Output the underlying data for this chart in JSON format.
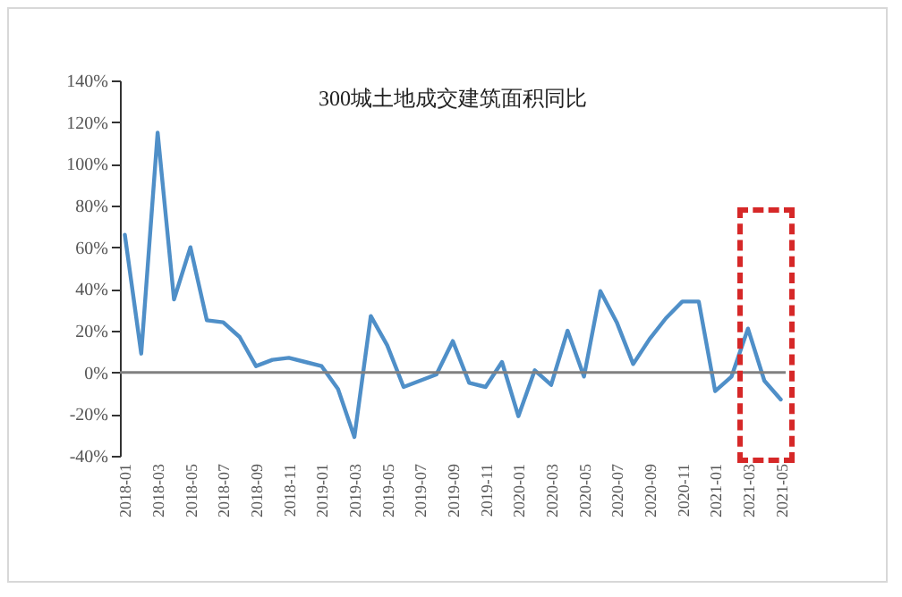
{
  "chart_data": {
    "type": "line",
    "title": "300城土地成交建筑面积同比",
    "categories": [
      "2018-01",
      null,
      "2018-03",
      null,
      "2018-05",
      null,
      "2018-07",
      null,
      "2018-09",
      null,
      "2018-11",
      null,
      "2019-01",
      null,
      "2019-03",
      null,
      "2019-05",
      null,
      "2019-07",
      null,
      "2019-09",
      null,
      "2019-11",
      null,
      "2020-01",
      null,
      "2020-03",
      null,
      "2020-05",
      null,
      "2020-07",
      null,
      "2020-09",
      null,
      "2020-11",
      null,
      "2021-01",
      null,
      "2021-03",
      null,
      "2021-05"
    ],
    "series": [
      {
        "color": "#4f8fc8",
        "values": [
          66,
          9,
          115,
          35,
          60,
          25,
          24,
          17,
          3,
          6,
          7,
          5,
          3,
          -8,
          -31,
          27,
          13,
          -7,
          -4,
          -1,
          15,
          -5,
          -7,
          5,
          -21,
          1,
          -6,
          20,
          -2,
          39,
          24,
          4,
          16,
          26,
          34,
          34,
          -9,
          -2,
          21,
          -4,
          -13
        ]
      }
    ],
    "ylim": [
      -40,
      140
    ],
    "yticks": [
      {
        "value": -40,
        "label": "-40%"
      },
      {
        "value": -20,
        "label": "-20%"
      },
      {
        "value": 0,
        "label": "0%"
      },
      {
        "value": 20,
        "label": "20%"
      },
      {
        "value": 40,
        "label": "40%"
      },
      {
        "value": 60,
        "label": "60%"
      },
      {
        "value": 80,
        "label": "80%"
      },
      {
        "value": 100,
        "label": "100%"
      },
      {
        "value": 120,
        "label": "120%"
      },
      {
        "value": 140,
        "label": "140%"
      }
    ],
    "ref_lines": [
      {
        "axis": "y",
        "value": 0,
        "color": "#808080"
      }
    ],
    "grid": false,
    "marker": "none",
    "line_style": "solid"
  }
}
